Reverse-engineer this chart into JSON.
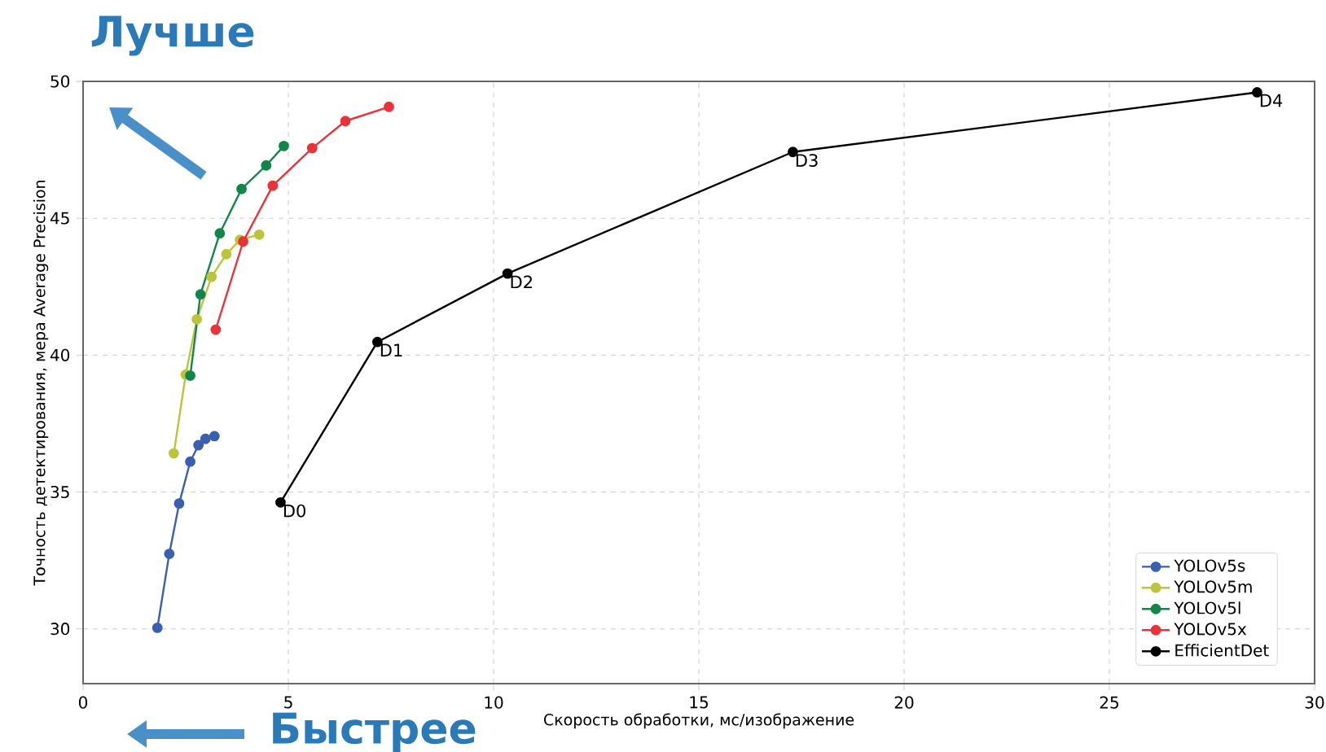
{
  "chart_data": {
    "type": "line",
    "xlabel": "Скорость обработки, мс/изображение",
    "ylabel": "Точность детектирования, мера Average Precision",
    "xlim": [
      0,
      30
    ],
    "ylim": [
      28,
      50
    ],
    "xticks": [
      0,
      5,
      10,
      15,
      20,
      25,
      30
    ],
    "yticks": [
      30,
      35,
      40,
      45,
      50
    ],
    "grid": true,
    "legend": "bottom right",
    "marker": "circle",
    "line_style": "solid",
    "series": [
      {
        "name": "YOLOv5s",
        "color": "#3a5fb0",
        "x": [
          1.81,
          2.1,
          2.34,
          2.61,
          2.81,
          2.98,
          3.2
        ],
        "values": [
          30.04,
          32.74,
          34.58,
          36.11,
          36.71,
          36.94,
          37.04
        ]
      },
      {
        "name": "YOLOv5m",
        "color": "#bcc43c",
        "x": [
          2.21,
          2.5,
          2.77,
          3.13,
          3.49,
          3.82,
          4.29
        ],
        "values": [
          36.41,
          39.29,
          41.31,
          42.86,
          43.69,
          44.21,
          44.4
        ]
      },
      {
        "name": "YOLOv5l",
        "color": "#12864a",
        "x": [
          2.61,
          2.86,
          3.33,
          3.86,
          4.46,
          4.89
        ],
        "values": [
          39.25,
          42.22,
          44.45,
          46.07,
          46.93,
          47.64
        ]
      },
      {
        "name": "YOLOv5x",
        "color": "#e8333a",
        "x": [
          3.23,
          3.9,
          4.62,
          5.58,
          6.39,
          7.45
        ],
        "values": [
          40.93,
          44.15,
          46.19,
          47.56,
          48.55,
          49.07
        ]
      },
      {
        "name": "EfficientDet",
        "color": "#000000",
        "x": [
          4.81,
          7.17,
          10.34,
          17.29,
          28.6
        ],
        "values": [
          34.62,
          40.48,
          42.98,
          47.42,
          49.6
        ]
      }
    ],
    "annotations": [
      "Лучше",
      "Быстрее",
      {
        "text": "D0",
        "x": 4.81,
        "y": 34.62
      },
      {
        "text": "D1",
        "x": 7.17,
        "y": 40.48
      },
      {
        "text": "D2",
        "x": 10.34,
        "y": 42.98
      },
      {
        "text": "D3",
        "x": 17.29,
        "y": 47.42
      },
      {
        "text": "D4",
        "x": 28.6,
        "y": 49.6
      }
    ]
  }
}
